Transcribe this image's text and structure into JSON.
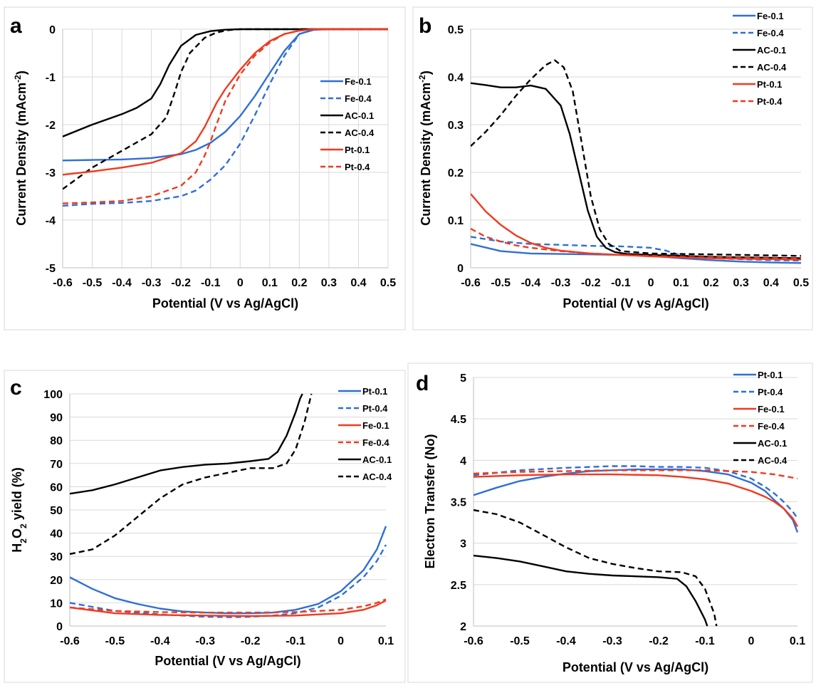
{
  "colors": {
    "blue": "#2f6fd6",
    "black": "#000000",
    "red": "#f03a1f",
    "grid": "#d9d9d9"
  },
  "chart_data": [
    {
      "panel": "a",
      "type": "line",
      "xlabel": "Potential (V vs Ag/AgCl)",
      "ylabel_parts": [
        "Current Density (mAcm",
        "-2",
        ")"
      ],
      "xlim": [
        -0.6,
        0.5
      ],
      "ylim": [
        -5,
        0
      ],
      "xticks": [
        "-0.6",
        "-0.5",
        "-0.4",
        "-0.3",
        "-0.2",
        "-0.1",
        "0",
        "0.1",
        "0.2",
        "0.3",
        "0.4",
        "0.5"
      ],
      "yticks": [
        "0",
        "-1",
        "-2",
        "-3",
        "-4",
        "-5"
      ],
      "series": [
        {
          "name": "Fe-0.1",
          "color": "#2f6fd6",
          "dash": false,
          "x": [
            -0.6,
            -0.5,
            -0.4,
            -0.3,
            -0.2,
            -0.15,
            -0.1,
            -0.05,
            0,
            0.05,
            0.1,
            0.15,
            0.2,
            0.25,
            0.3,
            0.5
          ],
          "y": [
            -2.75,
            -2.74,
            -2.73,
            -2.7,
            -2.62,
            -2.53,
            -2.38,
            -2.15,
            -1.82,
            -1.4,
            -0.92,
            -0.45,
            -0.1,
            -0.01,
            0,
            0
          ]
        },
        {
          "name": "Fe-0.4",
          "color": "#2f6fd6",
          "dash": true,
          "x": [
            -0.6,
            -0.5,
            -0.4,
            -0.3,
            -0.2,
            -0.15,
            -0.1,
            -0.05,
            0,
            0.05,
            0.1,
            0.15,
            0.2,
            0.25,
            0.3,
            0.5
          ],
          "y": [
            -3.7,
            -3.66,
            -3.64,
            -3.6,
            -3.5,
            -3.38,
            -3.15,
            -2.85,
            -2.4,
            -1.8,
            -1.15,
            -0.55,
            -0.1,
            -0.01,
            0,
            0
          ]
        },
        {
          "name": "AC-0.1",
          "color": "#000000",
          "dash": false,
          "x": [
            -0.6,
            -0.5,
            -0.4,
            -0.35,
            -0.3,
            -0.27,
            -0.24,
            -0.2,
            -0.15,
            -0.1,
            -0.05,
            0,
            0.5
          ],
          "y": [
            -2.25,
            -2.0,
            -1.78,
            -1.65,
            -1.45,
            -1.15,
            -0.75,
            -0.35,
            -0.12,
            -0.04,
            -0.01,
            0,
            0
          ]
        },
        {
          "name": "AC-0.4",
          "color": "#000000",
          "dash": true,
          "x": [
            -0.6,
            -0.5,
            -0.4,
            -0.3,
            -0.25,
            -0.22,
            -0.2,
            -0.17,
            -0.12,
            -0.08,
            -0.04,
            0,
            0.5
          ],
          "y": [
            -3.35,
            -2.9,
            -2.55,
            -2.2,
            -1.85,
            -1.3,
            -0.9,
            -0.5,
            -0.18,
            -0.07,
            -0.02,
            0,
            0
          ]
        },
        {
          "name": "Pt-0.1",
          "color": "#f03a1f",
          "dash": false,
          "x": [
            -0.6,
            -0.5,
            -0.4,
            -0.3,
            -0.2,
            -0.15,
            -0.12,
            -0.1,
            -0.08,
            -0.05,
            0,
            0.05,
            0.1,
            0.15,
            0.2,
            0.25,
            0.5
          ],
          "y": [
            -3.05,
            -2.98,
            -2.9,
            -2.8,
            -2.6,
            -2.35,
            -2.05,
            -1.8,
            -1.55,
            -1.25,
            -0.85,
            -0.5,
            -0.25,
            -0.1,
            -0.03,
            0,
            0
          ]
        },
        {
          "name": "Pt-0.4",
          "color": "#f03a1f",
          "dash": true,
          "x": [
            -0.6,
            -0.5,
            -0.4,
            -0.3,
            -0.2,
            -0.15,
            -0.12,
            -0.1,
            -0.08,
            -0.05,
            0,
            0.05,
            0.1,
            0.15,
            0.2,
            0.25,
            0.5
          ],
          "y": [
            -3.65,
            -3.63,
            -3.6,
            -3.5,
            -3.28,
            -3.0,
            -2.65,
            -2.35,
            -2.0,
            -1.5,
            -0.95,
            -0.55,
            -0.28,
            -0.1,
            -0.03,
            0,
            0
          ]
        }
      ]
    },
    {
      "panel": "b",
      "type": "line",
      "xlabel": "Potential (V vs Ag/AgCl)",
      "ylabel_parts": [
        "Current Density (mAcm",
        "-2",
        ")"
      ],
      "xlim": [
        -0.6,
        0.5
      ],
      "ylim": [
        0,
        0.5
      ],
      "xticks": [
        "-0.6",
        "-0.5",
        "-0.4",
        "-0.3",
        "-0.2",
        "-0.1",
        "0",
        "0.1",
        "0.2",
        "0.3",
        "0.4",
        "0.5"
      ],
      "yticks": [
        "0",
        "0.1",
        "0.2",
        "0.3",
        "0.4",
        "0.5"
      ],
      "series": [
        {
          "name": "Fe-0.1",
          "color": "#2f6fd6",
          "dash": false,
          "x": [
            -0.6,
            -0.5,
            -0.4,
            -0.3,
            -0.2,
            -0.1,
            0,
            0.1,
            0.2,
            0.3,
            0.4,
            0.5
          ],
          "y": [
            0.05,
            0.035,
            0.03,
            0.029,
            0.028,
            0.027,
            0.025,
            0.02,
            0.016,
            0.013,
            0.011,
            0.01
          ]
        },
        {
          "name": "Fe-0.4",
          "color": "#2f6fd6",
          "dash": true,
          "x": [
            -0.6,
            -0.5,
            -0.4,
            -0.3,
            -0.2,
            -0.1,
            0,
            0.05,
            0.1,
            0.2,
            0.3,
            0.4,
            0.5
          ],
          "y": [
            0.065,
            0.055,
            0.05,
            0.048,
            0.046,
            0.045,
            0.042,
            0.036,
            0.026,
            0.02,
            0.018,
            0.016,
            0.015
          ]
        },
        {
          "name": "AC-0.1",
          "color": "#000000",
          "dash": false,
          "x": [
            -0.6,
            -0.55,
            -0.5,
            -0.45,
            -0.4,
            -0.35,
            -0.3,
            -0.27,
            -0.24,
            -0.21,
            -0.18,
            -0.15,
            -0.12,
            -0.08,
            0,
            0.1,
            0.2,
            0.3,
            0.4,
            0.5
          ],
          "y": [
            0.387,
            0.383,
            0.378,
            0.378,
            0.382,
            0.375,
            0.34,
            0.28,
            0.2,
            0.12,
            0.065,
            0.042,
            0.033,
            0.029,
            0.027,
            0.025,
            0.023,
            0.022,
            0.021,
            0.02
          ]
        },
        {
          "name": "AC-0.4",
          "color": "#000000",
          "dash": true,
          "x": [
            -0.6,
            -0.55,
            -0.5,
            -0.45,
            -0.4,
            -0.35,
            -0.32,
            -0.29,
            -0.26,
            -0.23,
            -0.2,
            -0.17,
            -0.14,
            -0.1,
            0,
            0.1,
            0.2,
            0.3,
            0.4,
            0.5
          ],
          "y": [
            0.255,
            0.285,
            0.32,
            0.36,
            0.395,
            0.425,
            0.435,
            0.42,
            0.37,
            0.26,
            0.15,
            0.08,
            0.05,
            0.035,
            0.03,
            0.029,
            0.028,
            0.027,
            0.026,
            0.025
          ]
        },
        {
          "name": "Pt-0.1",
          "color": "#f03a1f",
          "dash": false,
          "x": [
            -0.6,
            -0.55,
            -0.5,
            -0.45,
            -0.4,
            -0.35,
            -0.3,
            -0.2,
            -0.1,
            0,
            0.1,
            0.2,
            0.3,
            0.4,
            0.5
          ],
          "y": [
            0.155,
            0.118,
            0.09,
            0.068,
            0.052,
            0.042,
            0.036,
            0.03,
            0.027,
            0.024,
            0.022,
            0.02,
            0.019,
            0.018,
            0.017
          ]
        },
        {
          "name": "Pt-0.4",
          "color": "#f03a1f",
          "dash": true,
          "x": [
            -0.6,
            -0.55,
            -0.5,
            -0.45,
            -0.4,
            -0.3,
            -0.2,
            -0.1,
            0,
            0.1,
            0.2,
            0.3,
            0.4,
            0.5
          ],
          "y": [
            0.082,
            0.065,
            0.055,
            0.047,
            0.042,
            0.035,
            0.03,
            0.027,
            0.025,
            0.023,
            0.022,
            0.021,
            0.02,
            0.019
          ]
        }
      ]
    },
    {
      "panel": "c",
      "type": "line",
      "xlabel": "Potential (V vs Ag/AgCl)",
      "ylabel_parts": [
        "H",
        "2",
        "O",
        "2",
        " yield (%)"
      ],
      "xlim": [
        -0.6,
        0.1
      ],
      "ylim": [
        0,
        100
      ],
      "xticks": [
        "-0.6",
        "-0.5",
        "-0.4",
        "-0.3",
        "-0.2",
        "-0.1",
        "0",
        "0.1"
      ],
      "yticks": [
        "0",
        "10",
        "20",
        "30",
        "40",
        "50",
        "60",
        "70",
        "80",
        "90",
        "100"
      ],
      "series": [
        {
          "name": "Pt-0.1",
          "color": "#2f6fd6",
          "dash": false,
          "x": [
            -0.6,
            -0.55,
            -0.5,
            -0.45,
            -0.4,
            -0.35,
            -0.3,
            -0.25,
            -0.2,
            -0.15,
            -0.1,
            -0.05,
            0,
            0.05,
            0.08,
            0.1
          ],
          "y": [
            21,
            16,
            12,
            9.5,
            7.5,
            6.3,
            5.8,
            5.5,
            5.5,
            5.8,
            7,
            9.5,
            15,
            24,
            33,
            43
          ]
        },
        {
          "name": "Pt-0.4",
          "color": "#2f6fd6",
          "dash": true,
          "x": [
            -0.6,
            -0.5,
            -0.4,
            -0.3,
            -0.25,
            -0.2,
            -0.15,
            -0.1,
            -0.05,
            0,
            0.05,
            0.08,
            0.1
          ],
          "y": [
            10,
            6.5,
            5,
            4,
            3.8,
            4,
            4.5,
            5.5,
            8,
            13,
            21,
            28,
            35
          ]
        },
        {
          "name": "Fe-0.1",
          "color": "#f03a1f",
          "dash": false,
          "x": [
            -0.6,
            -0.5,
            -0.4,
            -0.3,
            -0.2,
            -0.1,
            0,
            0.05,
            0.08,
            0.1
          ],
          "y": [
            8,
            5.5,
            4.8,
            4.5,
            4.3,
            4.5,
            5.5,
            7,
            9,
            11
          ]
        },
        {
          "name": "Fe-0.4",
          "color": "#f03a1f",
          "dash": true,
          "x": [
            -0.6,
            -0.5,
            -0.4,
            -0.3,
            -0.2,
            -0.1,
            0,
            0.05,
            0.08,
            0.1
          ],
          "y": [
            8,
            6.5,
            6,
            5.8,
            5.8,
            6,
            7,
            8.5,
            10,
            11.5
          ]
        },
        {
          "name": "AC-0.1",
          "color": "#000000",
          "dash": false,
          "x": [
            -0.6,
            -0.55,
            -0.5,
            -0.45,
            -0.4,
            -0.35,
            -0.3,
            -0.25,
            -0.2,
            -0.16,
            -0.14,
            -0.12,
            -0.1,
            -0.09,
            -0.085
          ],
          "y": [
            57,
            58.5,
            61,
            64,
            67,
            68.5,
            69.5,
            70,
            71,
            72,
            75,
            82,
            92,
            98,
            100
          ]
        },
        {
          "name": "AC-0.4",
          "color": "#000000",
          "dash": true,
          "x": [
            -0.6,
            -0.55,
            -0.5,
            -0.45,
            -0.4,
            -0.35,
            -0.3,
            -0.25,
            -0.2,
            -0.15,
            -0.12,
            -0.1,
            -0.08,
            -0.07,
            -0.065
          ],
          "y": [
            31,
            33,
            39,
            47,
            55,
            61,
            64,
            66,
            68,
            68,
            70,
            76,
            88,
            96,
            100
          ]
        }
      ]
    },
    {
      "panel": "d",
      "type": "line",
      "xlabel": "Potential (V vs Ag/AgCl)",
      "ylabel_parts": [
        "Electron Transfer (No)"
      ],
      "xlim": [
        -0.6,
        0.1
      ],
      "ylim": [
        2,
        5
      ],
      "xticks": [
        "-0.6",
        "-0.5",
        "-0.4",
        "-0.3",
        "-0.2",
        "-0.1",
        "0",
        "0.1"
      ],
      "yticks": [
        "2",
        "2.5",
        "3",
        "3.5",
        "4",
        "4.5",
        "5"
      ],
      "series": [
        {
          "name": "Pt-0.1",
          "color": "#2f6fd6",
          "dash": false,
          "x": [
            -0.6,
            -0.55,
            -0.5,
            -0.45,
            -0.4,
            -0.35,
            -0.3,
            -0.25,
            -0.2,
            -0.15,
            -0.1,
            -0.05,
            0,
            0.03,
            0.05,
            0.07,
            0.09,
            0.1
          ],
          "y": [
            3.58,
            3.67,
            3.75,
            3.8,
            3.84,
            3.87,
            3.88,
            3.89,
            3.89,
            3.89,
            3.87,
            3.83,
            3.73,
            3.63,
            3.52,
            3.42,
            3.28,
            3.13
          ]
        },
        {
          "name": "Pt-0.4",
          "color": "#2f6fd6",
          "dash": true,
          "x": [
            -0.6,
            -0.5,
            -0.4,
            -0.3,
            -0.25,
            -0.2,
            -0.15,
            -0.1,
            -0.05,
            0,
            0.03,
            0.05,
            0.07,
            0.09,
            0.1
          ],
          "y": [
            3.82,
            3.88,
            3.91,
            3.93,
            3.93,
            3.92,
            3.92,
            3.91,
            3.87,
            3.78,
            3.68,
            3.6,
            3.5,
            3.38,
            3.3
          ]
        },
        {
          "name": "Fe-0.1",
          "color": "#f03a1f",
          "dash": false,
          "x": [
            -0.6,
            -0.5,
            -0.4,
            -0.3,
            -0.2,
            -0.15,
            -0.1,
            -0.05,
            0,
            0.03,
            0.05,
            0.07,
            0.09,
            0.1
          ],
          "y": [
            3.8,
            3.82,
            3.83,
            3.83,
            3.82,
            3.8,
            3.77,
            3.72,
            3.63,
            3.56,
            3.5,
            3.42,
            3.3,
            3.2
          ]
        },
        {
          "name": "Fe-0.4",
          "color": "#f03a1f",
          "dash": true,
          "x": [
            -0.6,
            -0.5,
            -0.4,
            -0.3,
            -0.2,
            -0.1,
            -0.05,
            0,
            0.05,
            0.1
          ],
          "y": [
            3.84,
            3.86,
            3.87,
            3.88,
            3.88,
            3.88,
            3.87,
            3.86,
            3.83,
            3.78
          ]
        },
        {
          "name": "AC-0.1",
          "color": "#000000",
          "dash": false,
          "x": [
            -0.6,
            -0.55,
            -0.5,
            -0.45,
            -0.4,
            -0.35,
            -0.3,
            -0.25,
            -0.2,
            -0.16,
            -0.14,
            -0.12,
            -0.1,
            -0.095
          ],
          "y": [
            2.85,
            2.82,
            2.78,
            2.72,
            2.66,
            2.63,
            2.61,
            2.6,
            2.59,
            2.57,
            2.48,
            2.3,
            2.08,
            2.0
          ]
        },
        {
          "name": "AC-0.4",
          "color": "#000000",
          "dash": true,
          "x": [
            -0.6,
            -0.55,
            -0.5,
            -0.45,
            -0.4,
            -0.35,
            -0.3,
            -0.25,
            -0.2,
            -0.15,
            -0.12,
            -0.1,
            -0.08,
            -0.075
          ],
          "y": [
            3.4,
            3.35,
            3.25,
            3.1,
            2.95,
            2.82,
            2.75,
            2.7,
            2.66,
            2.65,
            2.6,
            2.45,
            2.15,
            2.0
          ]
        }
      ]
    }
  ]
}
